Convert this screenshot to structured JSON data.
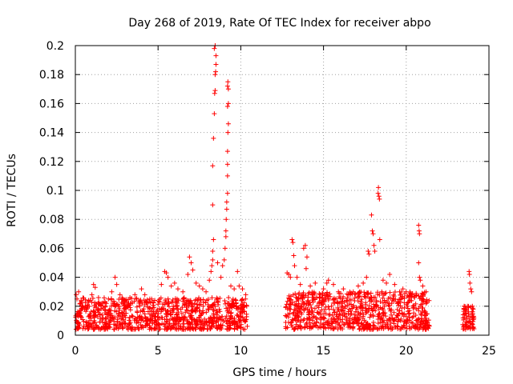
{
  "chart_data": {
    "type": "scatter",
    "title": "Day 268 of 2019, Rate Of TEC Index for receiver abpo",
    "xlabel": "GPS time / hours",
    "ylabel": "ROTI / TECUs",
    "xlim": [
      0,
      25
    ],
    "ylim": [
      0,
      0.2
    ],
    "xticks": [
      0,
      5,
      10,
      15,
      20,
      25
    ],
    "yticks": [
      0,
      0.02,
      0.04,
      0.06,
      0.08,
      0.1,
      0.12,
      0.14,
      0.16,
      0.18,
      0.2
    ],
    "xtick_labels": [
      "0",
      "5",
      "10",
      "15",
      "20",
      "25"
    ],
    "ytick_labels": [
      "0",
      "0.02",
      "0.04",
      "0.06",
      "0.08",
      "0.1",
      "0.12",
      "0.14",
      "0.16",
      "0.18",
      "0.2"
    ],
    "grid": true,
    "marker": "+",
    "color": "#ff0000",
    "series": [
      {
        "points": [
          [
            0.05,
            0.028
          ],
          [
            0.1,
            0.025
          ],
          [
            0.2,
            0.03
          ],
          [
            0.3,
            0.022
          ],
          [
            0.4,
            0.018
          ],
          [
            0.6,
            0.02
          ],
          [
            0.8,
            0.024
          ],
          [
            1.0,
            0.028
          ],
          [
            1.1,
            0.035
          ],
          [
            1.2,
            0.033
          ],
          [
            1.4,
            0.026
          ],
          [
            1.6,
            0.022
          ],
          [
            1.8,
            0.02
          ],
          [
            2.0,
            0.025
          ],
          [
            2.2,
            0.03
          ],
          [
            2.4,
            0.04
          ],
          [
            2.5,
            0.035
          ],
          [
            2.7,
            0.028
          ],
          [
            3.0,
            0.024
          ],
          [
            3.3,
            0.026
          ],
          [
            3.6,
            0.028
          ],
          [
            4.0,
            0.032
          ],
          [
            4.2,
            0.028
          ],
          [
            4.5,
            0.025
          ],
          [
            4.8,
            0.024
          ],
          [
            5.2,
            0.035
          ],
          [
            5.4,
            0.044
          ],
          [
            5.5,
            0.043
          ],
          [
            5.6,
            0.04
          ],
          [
            5.8,
            0.034
          ],
          [
            6.0,
            0.036
          ],
          [
            6.2,
            0.032
          ],
          [
            6.5,
            0.03
          ],
          [
            6.8,
            0.042
          ],
          [
            6.9,
            0.054
          ],
          [
            7.0,
            0.05
          ],
          [
            7.1,
            0.045
          ],
          [
            7.3,
            0.036
          ],
          [
            7.5,
            0.034
          ],
          [
            7.7,
            0.032
          ],
          [
            7.9,
            0.03
          ],
          [
            8.1,
            0.038
          ],
          [
            8.2,
            0.044
          ],
          [
            8.25,
            0.048
          ],
          [
            8.3,
            0.052
          ],
          [
            8.3,
            0.058
          ],
          [
            8.35,
            0.066
          ],
          [
            8.3,
            0.09
          ],
          [
            8.3,
            0.117
          ],
          [
            8.35,
            0.136
          ],
          [
            8.4,
            0.153
          ],
          [
            8.42,
            0.167
          ],
          [
            8.45,
            0.169
          ],
          [
            8.45,
            0.18
          ],
          [
            8.48,
            0.182
          ],
          [
            8.5,
            0.187
          ],
          [
            8.5,
            0.193
          ],
          [
            8.4,
            0.198
          ],
          [
            8.45,
            0.2
          ],
          [
            8.6,
            0.05
          ],
          [
            8.8,
            0.04
          ],
          [
            8.9,
            0.048
          ],
          [
            9.0,
            0.052
          ],
          [
            9.05,
            0.06
          ],
          [
            9.1,
            0.068
          ],
          [
            9.1,
            0.072
          ],
          [
            9.12,
            0.08
          ],
          [
            9.15,
            0.087
          ],
          [
            9.15,
            0.092
          ],
          [
            9.2,
            0.098
          ],
          [
            9.2,
            0.11
          ],
          [
            9.2,
            0.118
          ],
          [
            9.2,
            0.127
          ],
          [
            9.22,
            0.14
          ],
          [
            9.25,
            0.146
          ],
          [
            9.2,
            0.158
          ],
          [
            9.25,
            0.16
          ],
          [
            9.25,
            0.17
          ],
          [
            9.2,
            0.172
          ],
          [
            9.22,
            0.175
          ],
          [
            9.4,
            0.034
          ],
          [
            9.6,
            0.032
          ],
          [
            9.8,
            0.044
          ],
          [
            9.9,
            0.034
          ],
          [
            10.1,
            0.032
          ],
          [
            10.3,
            0.028
          ],
          [
            12.8,
            0.043
          ],
          [
            12.9,
            0.042
          ],
          [
            13.0,
            0.04
          ],
          [
            13.1,
            0.066
          ],
          [
            13.15,
            0.064
          ],
          [
            13.2,
            0.055
          ],
          [
            13.25,
            0.048
          ],
          [
            13.4,
            0.04
          ],
          [
            13.6,
            0.035
          ],
          [
            13.8,
            0.06
          ],
          [
            13.9,
            0.062
          ],
          [
            14.0,
            0.054
          ],
          [
            13.95,
            0.046
          ],
          [
            14.2,
            0.034
          ],
          [
            14.5,
            0.036
          ],
          [
            14.8,
            0.028
          ],
          [
            15.0,
            0.032
          ],
          [
            15.2,
            0.036
          ],
          [
            15.3,
            0.038
          ],
          [
            15.6,
            0.035
          ],
          [
            15.9,
            0.03
          ],
          [
            16.2,
            0.032
          ],
          [
            16.5,
            0.028
          ],
          [
            16.8,
            0.03
          ],
          [
            17.1,
            0.034
          ],
          [
            17.4,
            0.036
          ],
          [
            17.6,
            0.04
          ],
          [
            17.7,
            0.058
          ],
          [
            17.75,
            0.056
          ],
          [
            17.9,
            0.083
          ],
          [
            17.95,
            0.072
          ],
          [
            18.0,
            0.07
          ],
          [
            18.05,
            0.062
          ],
          [
            18.1,
            0.058
          ],
          [
            18.3,
            0.098
          ],
          [
            18.32,
            0.102
          ],
          [
            18.35,
            0.096
          ],
          [
            18.38,
            0.094
          ],
          [
            18.4,
            0.066
          ],
          [
            18.6,
            0.038
          ],
          [
            18.8,
            0.036
          ],
          [
            19.0,
            0.042
          ],
          [
            19.3,
            0.035
          ],
          [
            19.6,
            0.03
          ],
          [
            19.8,
            0.032
          ],
          [
            20.0,
            0.03
          ],
          [
            20.3,
            0.028
          ],
          [
            20.5,
            0.026
          ],
          [
            20.75,
            0.076
          ],
          [
            20.78,
            0.072
          ],
          [
            20.8,
            0.07
          ],
          [
            20.75,
            0.05
          ],
          [
            20.8,
            0.04
          ],
          [
            20.85,
            0.038
          ],
          [
            21.0,
            0.034
          ],
          [
            21.2,
            0.03
          ],
          [
            23.5,
            0.02
          ],
          [
            23.6,
            0.018
          ],
          [
            23.7,
            0.02
          ],
          [
            23.8,
            0.044
          ],
          [
            23.82,
            0.042
          ],
          [
            23.85,
            0.036
          ],
          [
            23.9,
            0.032
          ],
          [
            23.95,
            0.03
          ],
          [
            24.0,
            0.02
          ],
          [
            24.05,
            0.018
          ]
        ],
        "bands": [
          {
            "x": [
              0.0,
              10.4
            ],
            "min": 0.004,
            "max": 0.026
          },
          {
            "x": [
              12.7,
              21.4
            ],
            "min": 0.004,
            "max": 0.03
          },
          {
            "x": [
              23.4,
              24.1
            ],
            "min": 0.004,
            "max": 0.02
          }
        ]
      }
    ]
  }
}
